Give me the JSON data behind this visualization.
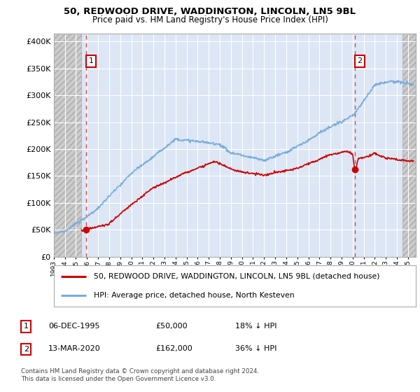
{
  "title1": "50, REDWOOD DRIVE, WADDINGTON, LINCOLN, LN5 9BL",
  "title2": "Price paid vs. HM Land Registry's House Price Index (HPI)",
  "ytick_values": [
    0,
    50000,
    100000,
    150000,
    200000,
    250000,
    300000,
    350000,
    400000
  ],
  "ylim": [
    0,
    415000
  ],
  "xlim_start": 1993.0,
  "xlim_end": 2025.7,
  "hpi_color": "#7aaddb",
  "price_color": "#cc0000",
  "marker1_x": 1995.92,
  "marker1_y": 50000,
  "marker2_x": 2020.2,
  "marker2_y": 162000,
  "legend_line1": "50, REDWOOD DRIVE, WADDINGTON, LINCOLN, LN5 9BL (detached house)",
  "legend_line2": "HPI: Average price, detached house, North Kesteven",
  "note1_date": "06-DEC-1995",
  "note1_price": "£50,000",
  "note1_hpi": "18% ↓ HPI",
  "note2_date": "13-MAR-2020",
  "note2_price": "£162,000",
  "note2_hpi": "36% ↓ HPI",
  "footnote": "Contains HM Land Registry data © Crown copyright and database right 2024.\nThis data is licensed under the Open Government Licence v3.0.",
  "background_color": "#ffffff",
  "plot_bg_color": "#dce6f5",
  "grid_color": "#ffffff",
  "hatch_left_end": 1995.5,
  "hatch_right_start": 2024.5,
  "dashed_color": "#dd4444"
}
